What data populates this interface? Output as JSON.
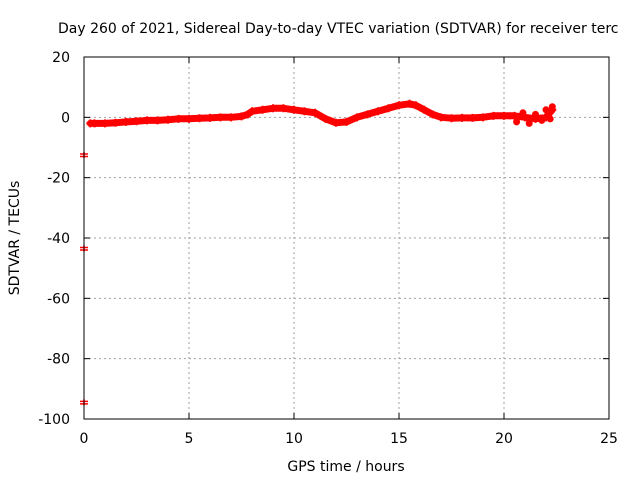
{
  "chart_data": {
    "type": "scatter",
    "title": "Day 260 of 2021, Sidereal Day-to-day VTEC variation (SDTVAR) for receiver terc",
    "xlabel": "GPS time / hours",
    "ylabel": "SDTVAR / TECUs",
    "xlim": [
      0,
      25
    ],
    "ylim": [
      -100,
      20
    ],
    "xticks": [
      0,
      5,
      10,
      15,
      20,
      25
    ],
    "yticks": [
      -100,
      -80,
      -60,
      -40,
      -20,
      0,
      20
    ],
    "grid": true,
    "legend": "none",
    "color": "#ff0000",
    "series": [
      {
        "x": [
          0.3,
          0.5,
          1,
          1.5,
          2,
          2.5,
          3,
          3.5,
          4,
          4.5,
          5,
          5.5,
          6,
          6.5,
          7,
          7.5,
          7.8,
          8,
          8.5,
          9,
          9.5,
          10,
          10.5,
          11,
          11.5,
          12,
          12.5,
          13,
          13.5,
          14,
          14.5,
          15,
          15.5,
          15.8,
          16.2,
          16.6,
          17,
          17.5,
          18,
          18.5,
          19,
          19.5,
          20,
          20.5,
          21,
          21.5,
          22,
          22.3
        ],
        "y": [
          -2,
          -2,
          -2,
          -1.8,
          -1.5,
          -1.3,
          -1,
          -1,
          -0.8,
          -0.5,
          -0.5,
          -0.3,
          -0.2,
          0,
          0,
          0.3,
          1,
          2,
          2.5,
          3,
          3,
          2.5,
          2,
          1.5,
          -0.5,
          -1.8,
          -1.5,
          0,
          1,
          2,
          3,
          4,
          4.5,
          4,
          2.5,
          1,
          0,
          -0.3,
          -0.2,
          -0.2,
          0,
          0.5,
          0.5,
          0.5,
          0,
          -0.5,
          0,
          2.5
        ]
      },
      {
        "x": [
          0,
          0,
          0
        ],
        "y": [
          -12.5,
          -43.5,
          -94.5
        ]
      }
    ]
  }
}
